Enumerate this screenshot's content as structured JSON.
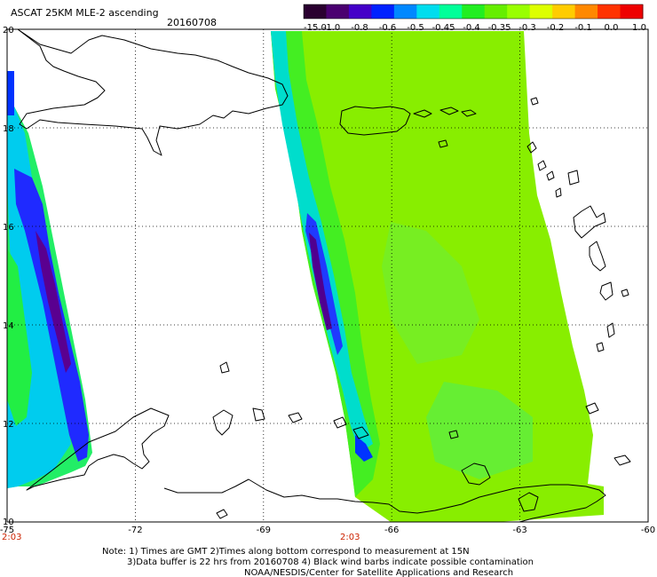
{
  "title": "ASCAT 25KM MLE-2 ascending",
  "date": "20160708",
  "colorbar": {
    "labels": [
      "-15.0",
      "-1.0",
      "-0.8",
      "-0.6",
      "-0.5",
      "-0.45",
      "-0.4",
      "-0.35",
      "-0.3",
      "-0.2",
      "-0.1",
      "0.0",
      "1.0"
    ],
    "colors": [
      "#2a0030",
      "#4a0070",
      "#4400c8",
      "#0022ff",
      "#0088ff",
      "#00ddee",
      "#00ff99",
      "#22ee22",
      "#66ee00",
      "#99ff00",
      "#ddff00",
      "#ffcc00",
      "#ff8800",
      "#ff3300",
      "#ee0000"
    ]
  },
  "axes": {
    "lat_labels": [
      "20",
      "18",
      "16",
      "14",
      "12",
      "10"
    ],
    "lon_labels": [
      "-75",
      "-72",
      "-69",
      "-66",
      "-63",
      "-60"
    ],
    "lat_range": [
      10,
      20
    ],
    "lon_range": [
      -75,
      -60
    ],
    "grid": true
  },
  "pass_times": [
    "2:03",
    "2:03"
  ],
  "notes": {
    "line1": "Note: 1) Times are GMT 2)Times along bottom correspond to measurement at 15N",
    "line2": "3)Data buffer is 22 hrs from 20160708 4) Black wind barbs indicate possible contamination",
    "line3": "NOAA/NESDIS/Center for Satellite Applications and Research"
  }
}
